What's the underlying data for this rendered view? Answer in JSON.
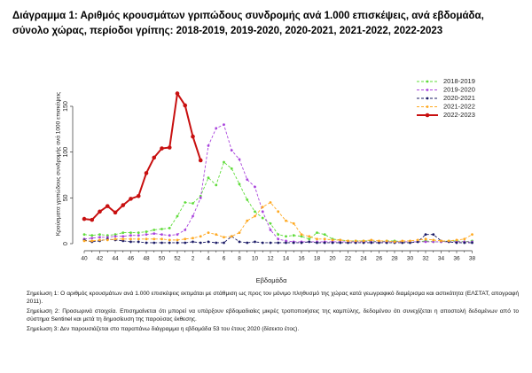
{
  "chart_data": {
    "type": "line",
    "title": "Διάγραμμα 1: Αριθμός κρουσμάτων γριπώδους συνδρομής ανά 1.000 επισκέψεις, ανά εβδομάδα, σύνολο χώρας, περίοδοι γρίπης: 2018-2019, 2019-2020, 2020-2021, 2021-2022, 2022-2023",
    "x_label": "Εβδομάδα",
    "y_label": "Κρούσματα γριπώδους συνδρομής ανά 1000 επισκέψεις",
    "categories": [
      "40",
      null,
      "42",
      null,
      "44",
      null,
      "46",
      null,
      "48",
      null,
      "50",
      null,
      "52",
      null,
      "2",
      null,
      "4",
      null,
      "6",
      null,
      "8",
      null,
      "10",
      null,
      "12",
      null,
      "14",
      null,
      "16",
      null,
      "18",
      null,
      "20",
      null,
      "22",
      null,
      "24",
      null,
      "26",
      null,
      "28",
      null,
      "30",
      null,
      "32",
      null,
      "34",
      null,
      "36",
      null,
      "38"
    ],
    "ylim": [
      0,
      180
    ],
    "yticks": [
      0,
      50,
      100,
      150
    ],
    "legend": "top-right",
    "series": [
      {
        "name": "2018-2019",
        "color": "#5fdc3a",
        "values": [
          10,
          9,
          10,
          9,
          10,
          12,
          12,
          12,
          13,
          15,
          16,
          17,
          30,
          45,
          44,
          52,
          72,
          64,
          89,
          82,
          65,
          48,
          35,
          28,
          22,
          10,
          8,
          9,
          8,
          5,
          12,
          10,
          5,
          4,
          3,
          3,
          3,
          3,
          2,
          3,
          3,
          2,
          2,
          2,
          3,
          2,
          2,
          3,
          3,
          2,
          3
        ]
      },
      {
        "name": "2019-2020",
        "color": "#a944dc",
        "values": [
          5,
          6,
          7,
          7,
          8,
          8,
          9,
          9,
          10,
          11,
          10,
          9,
          10,
          15,
          30,
          50,
          107,
          126,
          130,
          102,
          92,
          70,
          62,
          35,
          15,
          5,
          3,
          2,
          2,
          2,
          2,
          2,
          2,
          2,
          2,
          2,
          2,
          2,
          2,
          2,
          2,
          2,
          2,
          2,
          2,
          2,
          2,
          2,
          2,
          2,
          2
        ]
      },
      {
        "name": "2020-2021",
        "color": "#1b1b66",
        "values": [
          4,
          2,
          3,
          5,
          4,
          3,
          2,
          2,
          1,
          1,
          1,
          1,
          1,
          1,
          2,
          1,
          2,
          1,
          1,
          8,
          2,
          1,
          2,
          1,
          1,
          1,
          1,
          1,
          1,
          2,
          1,
          1,
          1,
          1,
          1,
          1,
          1,
          1,
          1,
          1,
          1,
          1,
          1,
          2,
          10,
          10,
          3,
          2,
          1,
          1,
          1
        ]
      },
      {
        "name": "2021-2022",
        "color": "#ffa81f",
        "values": [
          3,
          3,
          4,
          4,
          5,
          5,
          5,
          5,
          5,
          5,
          5,
          4,
          4,
          5,
          6,
          8,
          12,
          10,
          7,
          8,
          12,
          25,
          30,
          40,
          45,
          35,
          25,
          22,
          10,
          8,
          5,
          5,
          4,
          4,
          3,
          3,
          3,
          4,
          3,
          3,
          2,
          3,
          3,
          4,
          5,
          4,
          3,
          3,
          4,
          5,
          10
        ]
      },
      {
        "name": "2022-2023",
        "color": "#c81010",
        "values": [
          27,
          26,
          35,
          41,
          34,
          42,
          49,
          52,
          77,
          94,
          104,
          105,
          164,
          151,
          117,
          91,
          null,
          null,
          null,
          null,
          null,
          null,
          null,
          null,
          null,
          null,
          null,
          null,
          null,
          null,
          null,
          null,
          null,
          null,
          null,
          null,
          null,
          null,
          null,
          null,
          null,
          null,
          null,
          null,
          null,
          null,
          null,
          null,
          null,
          null,
          null
        ]
      }
    ],
    "notes": [
      "Σημείωση 1: Ο αριθμός κρουσμάτων ανά 1.000 επισκέψεις εκτιμάται με στάθμιση ως προς τον μόνιμο πληθυσμό της χώρας κατά γεωγραφικό διαμέρισμα και αστικότητα (ΕΛΣΤΑΤ, απογραφή 2011).",
      "Σημείωση 2: Προσωρινά στοιχεία. Επισημαίνεται ότι μπορεί να υπάρξουν εβδομαδιαίες μικρές τροποποιήσεις της καμπύλης, δεδομένου ότι συνεχίζεται η αποστολή δεδομένων από το σύστημα Sentinel και μετά τη δημοσίευση της παρούσας έκθεσης.",
      "Σημείωση 3: Δεν παρουσιάζεται στο παραπάνω διάγραμμα η εβδομάδα 53 του έτους 2020 (δίσεκτο έτος)."
    ]
  }
}
